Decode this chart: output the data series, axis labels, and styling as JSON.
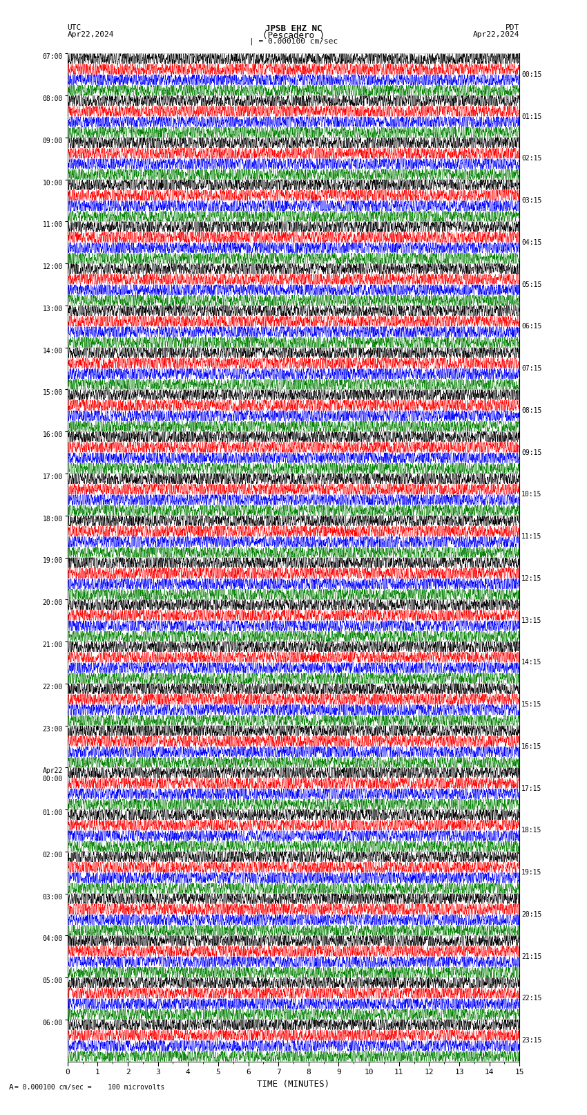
{
  "title_line1": "JPSB EHZ NC",
  "title_line2": "(Pescadero )",
  "title_line3": "| = 0.000100 cm/sec",
  "label_utc": "UTC",
  "label_pdt": "PDT",
  "date_left": "Apr22,2024",
  "date_right": "Apr22,2024",
  "xlabel": "TIME (MINUTES)",
  "footer": "= 0.000100 cm/sec =    100 microvolts",
  "left_times": [
    "07:00",
    "08:00",
    "09:00",
    "10:00",
    "11:00",
    "12:00",
    "13:00",
    "14:00",
    "15:00",
    "16:00",
    "17:00",
    "18:00",
    "19:00",
    "20:00",
    "21:00",
    "22:00",
    "23:00",
    "Apr22\n00:00",
    "01:00",
    "02:00",
    "03:00",
    "04:00",
    "05:00",
    "06:00"
  ],
  "right_times": [
    "00:15",
    "01:15",
    "02:15",
    "03:15",
    "04:15",
    "05:15",
    "06:15",
    "07:15",
    "08:15",
    "09:15",
    "10:15",
    "11:15",
    "12:15",
    "13:15",
    "14:15",
    "15:15",
    "16:15",
    "17:15",
    "18:15",
    "19:15",
    "20:15",
    "21:15",
    "22:15",
    "23:15"
  ],
  "num_rows": 24,
  "traces_per_row": 4,
  "trace_colors": [
    "black",
    "red",
    "blue",
    "green"
  ],
  "background_color": "white",
  "xlim": [
    0,
    15
  ],
  "xticks": [
    0,
    1,
    2,
    3,
    4,
    5,
    6,
    7,
    8,
    9,
    10,
    11,
    12,
    13,
    14,
    15
  ],
  "fig_width": 8.5,
  "fig_height": 16.13,
  "dpi": 100
}
